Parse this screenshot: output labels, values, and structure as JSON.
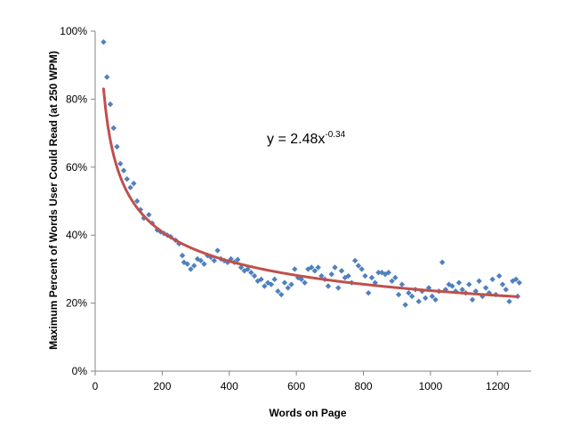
{
  "chart_data": {
    "type": "scatter",
    "xlabel": "Words on Page",
    "ylabel": "Maximum Percent of Words User Could Read (at 250 WPM)",
    "xlim": [
      0,
      1300
    ],
    "ylim": [
      0,
      100
    ],
    "x_ticks": [
      "0",
      "200",
      "400",
      "600",
      "800",
      "1000",
      "1200"
    ],
    "y_ticks": [
      "0%",
      "20%",
      "40%",
      "60%",
      "80%",
      "100%"
    ],
    "grid": false,
    "legend": "none",
    "colors": {
      "points": "#4f81bd",
      "trendline": "#c0504d",
      "axis": "#868686"
    },
    "trendline": {
      "type": "power",
      "a": 2.48,
      "b": -0.34,
      "x_range": [
        25,
        1260
      ],
      "equation_base": "y = 2.48x",
      "equation_exponent": "-0.34"
    },
    "series": [
      {
        "points": [
          [
            25,
            96.8
          ],
          [
            35,
            86.5
          ],
          [
            45,
            78.5
          ],
          [
            55,
            71.5
          ],
          [
            65,
            66.0
          ],
          [
            75,
            61.0
          ],
          [
            85,
            59.0
          ],
          [
            95,
            56.5
          ],
          [
            105,
            54.0
          ],
          [
            115,
            55.2
          ],
          [
            125,
            50.0
          ],
          [
            135,
            47.5
          ],
          [
            145,
            45.0
          ],
          [
            160,
            46.0
          ],
          [
            170,
            43.5
          ],
          [
            185,
            41.5
          ],
          [
            195,
            41.0
          ],
          [
            205,
            40.5
          ],
          [
            215,
            40.0
          ],
          [
            225,
            39.5
          ],
          [
            240,
            38.5
          ],
          [
            250,
            37.5
          ],
          [
            260,
            34.0
          ],
          [
            265,
            32.0
          ],
          [
            275,
            31.5
          ],
          [
            285,
            30.0
          ],
          [
            295,
            31.0
          ],
          [
            305,
            33.0
          ],
          [
            315,
            32.5
          ],
          [
            325,
            31.5
          ],
          [
            335,
            34.0
          ],
          [
            345,
            33.5
          ],
          [
            355,
            32.5
          ],
          [
            365,
            35.5
          ],
          [
            375,
            33.0
          ],
          [
            385,
            32.5
          ],
          [
            395,
            32.0
          ],
          [
            405,
            33.0
          ],
          [
            415,
            32.0
          ],
          [
            425,
            32.8
          ],
          [
            435,
            30.5
          ],
          [
            445,
            29.5
          ],
          [
            455,
            30.0
          ],
          [
            465,
            29.0
          ],
          [
            475,
            28.0
          ],
          [
            485,
            26.5
          ],
          [
            495,
            27.0
          ],
          [
            505,
            25.0
          ],
          [
            515,
            26.0
          ],
          [
            525,
            25.5
          ],
          [
            535,
            27.0
          ],
          [
            545,
            23.5
          ],
          [
            555,
            22.5
          ],
          [
            565,
            26.0
          ],
          [
            575,
            24.5
          ],
          [
            585,
            25.5
          ],
          [
            595,
            30.0
          ],
          [
            605,
            27.5
          ],
          [
            615,
            27.0
          ],
          [
            625,
            26.0
          ],
          [
            635,
            30.0
          ],
          [
            645,
            30.5
          ],
          [
            655,
            29.5
          ],
          [
            665,
            30.5
          ],
          [
            675,
            28.0
          ],
          [
            685,
            27.0
          ],
          [
            695,
            25.0
          ],
          [
            705,
            28.5
          ],
          [
            715,
            30.5
          ],
          [
            725,
            24.5
          ],
          [
            735,
            29.5
          ],
          [
            745,
            27.5
          ],
          [
            755,
            28.0
          ],
          [
            765,
            26.0
          ],
          [
            775,
            32.5
          ],
          [
            785,
            31.0
          ],
          [
            795,
            30.0
          ],
          [
            805,
            28.0
          ],
          [
            815,
            23.0
          ],
          [
            825,
            27.5
          ],
          [
            835,
            26.0
          ],
          [
            845,
            29.0
          ],
          [
            855,
            29.0
          ],
          [
            865,
            28.5
          ],
          [
            875,
            29.0
          ],
          [
            885,
            26.5
          ],
          [
            895,
            27.5
          ],
          [
            905,
            22.5
          ],
          [
            915,
            25.5
          ],
          [
            925,
            19.5
          ],
          [
            935,
            23.0
          ],
          [
            945,
            22.0
          ],
          [
            955,
            24.0
          ],
          [
            965,
            20.5
          ],
          [
            975,
            23.5
          ],
          [
            985,
            21.5
          ],
          [
            995,
            24.5
          ],
          [
            1005,
            22.0
          ],
          [
            1015,
            21.0
          ],
          [
            1025,
            23.5
          ],
          [
            1035,
            32.0
          ],
          [
            1045,
            24.0
          ],
          [
            1055,
            25.5
          ],
          [
            1065,
            25.0
          ],
          [
            1075,
            23.5
          ],
          [
            1085,
            26.0
          ],
          [
            1095,
            24.0
          ],
          [
            1105,
            23.0
          ],
          [
            1115,
            25.5
          ],
          [
            1125,
            21.0
          ],
          [
            1135,
            23.5
          ],
          [
            1145,
            26.5
          ],
          [
            1155,
            22.0
          ],
          [
            1165,
            24.5
          ],
          [
            1175,
            23.0
          ],
          [
            1185,
            27.0
          ],
          [
            1195,
            22.5
          ],
          [
            1205,
            28.0
          ],
          [
            1215,
            25.5
          ],
          [
            1225,
            24.0
          ],
          [
            1235,
            20.5
          ],
          [
            1245,
            26.5
          ],
          [
            1255,
            27.0
          ],
          [
            1260,
            22.0
          ],
          [
            1265,
            26.0
          ]
        ]
      }
    ]
  }
}
